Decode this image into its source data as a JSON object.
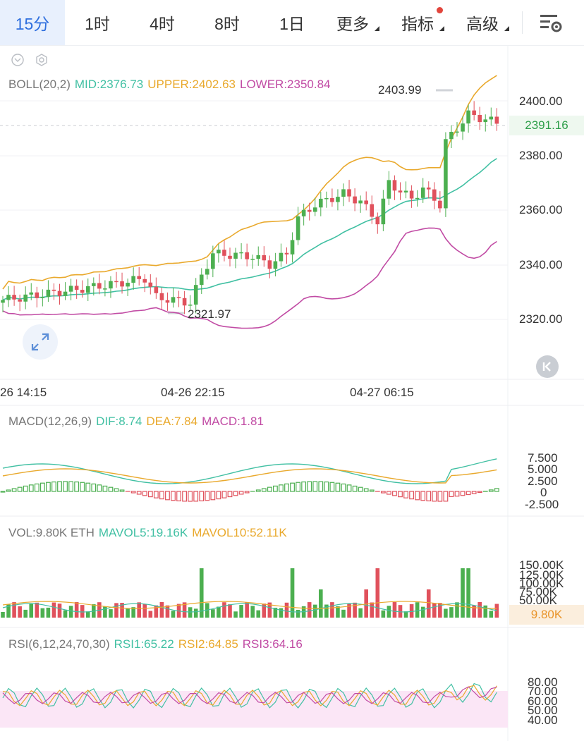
{
  "toolbar": {
    "tabs": [
      {
        "label": "15分",
        "active": true
      },
      {
        "label": "1时"
      },
      {
        "label": "4时"
      },
      {
        "label": "8时"
      },
      {
        "label": "1日"
      },
      {
        "label": "更多"
      },
      {
        "label": "指标"
      },
      {
        "label": "高级"
      }
    ],
    "settings_icon": "list-settings-icon"
  },
  "boll": {
    "name": "BOLL(20,2)",
    "mid": "MID:2376.73",
    "upper": "UPPER:2402.63",
    "lower": "LOWER:2350.84",
    "high_marker": "2403.99",
    "low_marker": "2321.97",
    "current_price": "2391.16",
    "y_ticks": [
      "2400.00",
      "2380.00",
      "2360.00",
      "2340.00",
      "2320.00"
    ],
    "time_labels": [
      "26 14:15",
      "04-26 22:15",
      "04-27 06:15"
    ]
  },
  "macd": {
    "name": "MACD(12,26,9)",
    "dif": "DIF:8.74",
    "dea": "DEA:7.84",
    "macd": "MACD:1.81",
    "y_ticks": [
      "7.500",
      "5.000",
      "2.500",
      "0",
      "-2.500"
    ]
  },
  "vol": {
    "name": "VOL:9.80K ETH",
    "mavol5": "MAVOL5:19.16K",
    "mavol10": "MAVOL10:52.11K",
    "current": "9.80K",
    "y_ticks": [
      "150.00K",
      "125.00K",
      "100.00K",
      "75.00K",
      "50.00K"
    ]
  },
  "rsi": {
    "name": "RSI(6,12,24,70,30)",
    "rsi1": "RSI1:65.22",
    "rsi2": "RSI2:64.85",
    "rsi3": "RSI3:64.16",
    "y_ticks": [
      "80.00",
      "70.00",
      "60.00",
      "50.00",
      "40.00"
    ]
  },
  "colors": {
    "up": "#4caf50",
    "down": "#e0515c",
    "mid": "#41c0a3",
    "upper": "#e9a92d",
    "lower": "#c14ba4",
    "active_tab": "#2f6fde"
  }
}
